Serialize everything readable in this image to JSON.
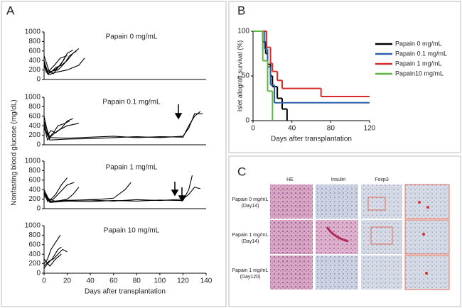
{
  "panels": [
    "A",
    "B",
    "C"
  ],
  "chart_data": [
    {
      "type": "line",
      "title": "Papain 0 mg/mL",
      "ylabel": "Nonfasting blood glucose (mg/dL)",
      "xlim": [
        0,
        140
      ],
      "ylim": [
        0,
        1000
      ],
      "yticks": [
        0,
        200,
        400,
        600,
        800,
        1000
      ],
      "series": [
        {
          "color": "#000000",
          "x": [
            0,
            3,
            6,
            10,
            15,
            20,
            25,
            30
          ],
          "values": [
            350,
            120,
            150,
            250,
            300,
            400,
            550,
            650
          ]
        },
        {
          "color": "#000000",
          "x": [
            0,
            3,
            7,
            12,
            18,
            22,
            28
          ],
          "values": [
            400,
            130,
            180,
            200,
            350,
            500,
            600
          ]
        },
        {
          "color": "#000000",
          "x": [
            0,
            2,
            5,
            9,
            14,
            20
          ],
          "values": [
            300,
            150,
            200,
            300,
            450,
            500
          ]
        },
        {
          "color": "#000000",
          "x": [
            0,
            4,
            8,
            12,
            16,
            20,
            25
          ],
          "values": [
            500,
            200,
            120,
            250,
            380,
            550,
            620
          ]
        },
        {
          "color": "#000000",
          "x": [
            0,
            3,
            6,
            10,
            14,
            18
          ],
          "values": [
            380,
            180,
            160,
            220,
            300,
            450
          ]
        },
        {
          "color": "#000000",
          "x": [
            0,
            4,
            10,
            20,
            30,
            35
          ],
          "values": [
            300,
            100,
            150,
            200,
            300,
            450
          ]
        }
      ]
    },
    {
      "type": "line",
      "title": "Papain 0.1 mg/mL",
      "xlim": [
        0,
        140
      ],
      "ylim": [
        0,
        1000
      ],
      "yticks": [
        0,
        200,
        400,
        600,
        800,
        1000
      ],
      "series": [
        {
          "color": "#000000",
          "x": [
            0,
            3,
            6,
            10,
            15,
            20,
            25
          ],
          "values": [
            450,
            200,
            300,
            250,
            350,
            500,
            550
          ]
        },
        {
          "color": "#000000",
          "x": [
            0,
            4,
            8,
            12,
            18,
            22
          ],
          "values": [
            600,
            150,
            250,
            400,
            450,
            500
          ]
        },
        {
          "color": "#000000",
          "x": [
            0,
            3,
            7,
            12,
            20,
            30
          ],
          "values": [
            400,
            100,
            200,
            300,
            400,
            450
          ]
        },
        {
          "color": "#000000",
          "x": [
            0,
            5,
            20,
            40,
            60,
            80,
            100,
            120,
            125,
            130,
            135
          ],
          "values": [
            500,
            150,
            140,
            160,
            180,
            150,
            170,
            160,
            400,
            600,
            700
          ]
        },
        {
          "color": "#000000",
          "x": [
            0,
            5,
            20,
            40,
            60,
            80,
            100,
            120,
            125,
            130,
            137
          ],
          "values": [
            350,
            100,
            120,
            130,
            150,
            170,
            150,
            180,
            350,
            650,
            650
          ]
        }
      ]
    },
    {
      "type": "line",
      "title": "Papain 1 mg/mL",
      "xlim": [
        0,
        140
      ],
      "ylim": [
        0,
        1000
      ],
      "yticks": [
        0,
        200,
        400,
        600,
        800,
        1000
      ],
      "series": [
        {
          "color": "#000000",
          "x": [
            0,
            3,
            6,
            10,
            15,
            20
          ],
          "values": [
            350,
            150,
            200,
            300,
            500,
            650
          ]
        },
        {
          "color": "#000000",
          "x": [
            0,
            4,
            8,
            14,
            20,
            26
          ],
          "values": [
            300,
            160,
            200,
            350,
            500,
            550
          ]
        },
        {
          "color": "#000000",
          "x": [
            0,
            5,
            15,
            30,
            50,
            60,
            70,
            75
          ],
          "values": [
            400,
            150,
            170,
            180,
            200,
            220,
            400,
            550
          ]
        },
        {
          "color": "#000000",
          "x": [
            0,
            5,
            20,
            40,
            60,
            80,
            100,
            120,
            125,
            130,
            135
          ],
          "values": [
            300,
            150,
            170,
            180,
            160,
            190,
            170,
            200,
            300,
            450,
            420
          ]
        },
        {
          "color": "#000000",
          "x": [
            0,
            5,
            20,
            40,
            60,
            80,
            100,
            120,
            125,
            128
          ],
          "values": [
            350,
            130,
            160,
            150,
            170,
            160,
            180,
            170,
            400,
            700
          ]
        },
        {
          "color": "#000000",
          "x": [
            0,
            10,
            20,
            25,
            30
          ],
          "values": [
            250,
            150,
            200,
            300,
            450
          ]
        }
      ]
    },
    {
      "type": "line",
      "title": "Papain 10 mg/mL",
      "xlabel": "Days after transplantation",
      "xlim": [
        0,
        140
      ],
      "xticks": [
        0,
        20,
        40,
        60,
        80,
        100,
        120,
        140
      ],
      "ylim": [
        0,
        1000
      ],
      "yticks": [
        0,
        200,
        400,
        600,
        800,
        1000
      ],
      "series": [
        {
          "color": "#000000",
          "x": [
            0,
            3,
            6,
            10,
            14
          ],
          "values": [
            200,
            300,
            500,
            650,
            800
          ]
        },
        {
          "color": "#000000",
          "x": [
            0,
            4,
            8,
            12,
            16,
            20
          ],
          "values": [
            150,
            250,
            300,
            400,
            500,
            450
          ]
        },
        {
          "color": "#000000",
          "x": [
            0,
            3,
            7,
            12,
            15
          ],
          "values": [
            100,
            200,
            300,
            500,
            550
          ]
        },
        {
          "color": "#000000",
          "x": [
            0,
            5,
            10,
            15
          ],
          "values": [
            300,
            150,
            300,
            400
          ]
        }
      ]
    },
    {
      "type": "step",
      "ylabel": "Islet allograft survival (%)",
      "xlabel": "Days after transplantation",
      "xlim": [
        0,
        120
      ],
      "xticks": [
        0,
        40,
        80,
        120
      ],
      "ylim": [
        0,
        100
      ],
      "yticks": [
        0,
        50,
        100
      ],
      "series": [
        {
          "name": "Papain 0 mg/mL",
          "color": "#000000",
          "x": [
            0,
            10,
            13,
            15,
            18,
            20,
            25,
            30,
            35
          ],
          "values": [
            100,
            88,
            75,
            63,
            50,
            38,
            25,
            13,
            0
          ]
        },
        {
          "name": "Papain 0.1 mg/mL",
          "color": "#2e5fa8",
          "x": [
            0,
            12,
            15,
            18,
            22,
            28,
            120
          ],
          "values": [
            100,
            80,
            60,
            40,
            20,
            20,
            20
          ]
        },
        {
          "name": "Papain 1 mg/mL",
          "color": "#d62a2a",
          "x": [
            0,
            14,
            18,
            20,
            25,
            30,
            70,
            120
          ],
          "values": [
            100,
            82,
            64,
            55,
            45,
            36,
            27,
            27
          ]
        },
        {
          "name": "Papain10 mg/mL",
          "color": "#5cb545",
          "x": [
            0,
            10,
            15,
            20
          ],
          "values": [
            100,
            67,
            33,
            0
          ]
        }
      ]
    }
  ],
  "histology": {
    "columns": [
      "HE",
      "Insulin",
      "Foxp3"
    ],
    "rows": [
      [
        "Papain 0 mg/mL",
        "(Day14)"
      ],
      [
        "Papain 1 mg/mL",
        "(Day14)"
      ],
      [
        "Papain 1 mg/mL",
        "(Day120)"
      ]
    ]
  }
}
